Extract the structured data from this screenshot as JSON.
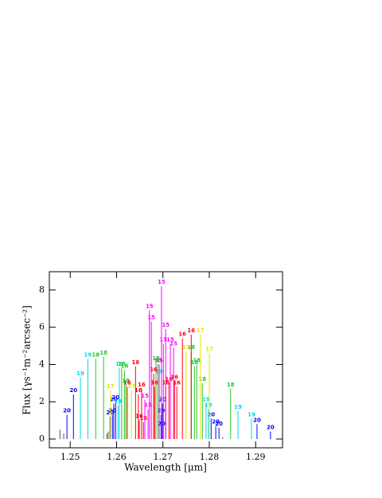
{
  "chart_data": {
    "type": "vlines",
    "xlabel": "Wavelength [μm]",
    "ylabel": "Flux [γs⁻¹m⁻²arcsec⁻²]",
    "xlim": [
      1.2455,
      1.2958
    ],
    "ylim": [
      -0.47,
      8.98
    ],
    "xticks": [
      1.25,
      1.26,
      1.27,
      1.28,
      1.29
    ],
    "yticks": [
      0,
      2,
      4,
      6,
      8
    ],
    "series": [
      {
        "color": "#0000ff",
        "x": [
          1.2493,
          1.2507,
          1.2586,
          1.2591,
          1.2594,
          1.2598,
          1.2696,
          1.2697,
          1.2699,
          1.2804,
          1.2814,
          1.2821,
          1.2903,
          1.2932
        ],
        "values": [
          1.3,
          2.4,
          1.2,
          1.3,
          1.9,
          2.0,
          1.3,
          0.6,
          1.9,
          1.1,
          0.7,
          0.6,
          0.8,
          0.4
        ],
        "labels": [
          "20",
          "20",
          "20",
          "20",
          "20",
          "20",
          "20",
          "20",
          "20",
          "20",
          "20",
          "20",
          "20",
          "20"
        ]
      },
      {
        "color": "#00d8f0",
        "x": [
          1.2522,
          1.2538,
          1.2603,
          1.2606,
          1.2692,
          1.2793,
          1.2798,
          1.2862,
          1.2891
        ],
        "values": [
          3.3,
          4.3,
          1.8,
          3.8,
          3.4,
          1.9,
          1.6,
          1.5,
          1.1
        ],
        "labels": [
          "19",
          "19",
          "19",
          "19",
          "19",
          "19",
          "19",
          "19",
          "19"
        ]
      },
      {
        "color": "#22cc22",
        "x": [
          1.2555,
          1.2572,
          1.2611,
          1.2617,
          1.262,
          1.2685,
          1.2689,
          1.2761,
          1.2768,
          1.2773,
          1.2785,
          1.2846
        ],
        "values": [
          4.3,
          4.4,
          3.8,
          3.7,
          2.9,
          4.1,
          4.0,
          4.7,
          3.9,
          4.0,
          3.0,
          2.7
        ],
        "labels": [
          "18",
          "18",
          "18",
          "18",
          "18",
          "18",
          "18",
          "18",
          "18",
          "18",
          "18",
          "18"
        ]
      },
      {
        "color": "#e6e600",
        "x": [
          1.2587,
          1.2632,
          1.275,
          1.2781,
          1.28
        ],
        "values": [
          2.6,
          2.6,
          4.7,
          5.6,
          4.6
        ],
        "labels": [
          "17",
          "17",
          "17",
          "17",
          "17"
        ]
      },
      {
        "color": "#ff0000",
        "x": [
          1.2623,
          1.2641,
          1.2647,
          1.2649,
          1.2654,
          1.2658,
          1.268,
          1.2682,
          1.2706,
          1.2713,
          1.2725,
          1.273,
          1.2742,
          1.2761
        ],
        "values": [
          2.8,
          3.9,
          2.4,
          1.0,
          2.7,
          0.9,
          3.5,
          2.8,
          2.8,
          3.0,
          3.1,
          2.8,
          5.4,
          5.6
        ],
        "labels": [
          "16",
          "16",
          "16",
          "16",
          "16",
          "16",
          "16",
          "16",
          "16",
          "16",
          "16",
          "16",
          "16",
          "16"
        ]
      },
      {
        "color": "#ff00ff",
        "x": [
          1.2661,
          1.2668,
          1.2671,
          1.2675,
          1.2692,
          1.2697,
          1.2701,
          1.2706,
          1.2716,
          1.2723
        ],
        "values": [
          2.1,
          1.6,
          6.9,
          6.3,
          4.0,
          8.2,
          5.1,
          5.9,
          5.1,
          4.9
        ],
        "labels": [
          "15",
          "15",
          "15",
          "15",
          "15",
          "15",
          "15",
          "15",
          "15",
          "15"
        ]
      },
      {
        "color": "#555555",
        "x": [
          1.2478,
          1.2486,
          1.2579,
          1.2582,
          1.2829
        ],
        "values": [
          0.5,
          0.3,
          0.3,
          0.4,
          0.1
        ]
      }
    ]
  }
}
